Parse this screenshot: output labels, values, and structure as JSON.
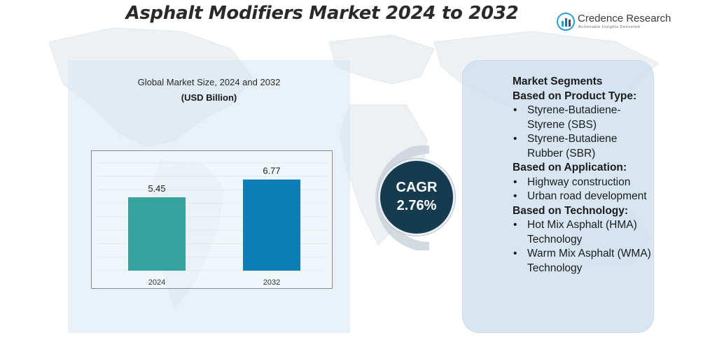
{
  "title": "Asphalt Modifiers Market 2024 to 2032",
  "logo": {
    "name": "Credence Research",
    "tagline": "Actionable Insights Delivered",
    "colors": {
      "bar1": "#2d9bd6",
      "bar2": "#1a6fa3",
      "bar3": "#4a4a4a"
    }
  },
  "chart_data": {
    "type": "bar",
    "title": "Global Market Size, 2024 and 2032",
    "unit": "(USD Billion)",
    "categories": [
      "2024",
      "2032"
    ],
    "values": [
      5.45,
      6.77
    ],
    "value_labels": [
      "5.45",
      "6.77"
    ],
    "colors": [
      "#35a39d",
      "#0b7eb3"
    ],
    "ylim": [
      0,
      8
    ],
    "grid": true,
    "xlabel": "",
    "ylabel": ""
  },
  "cagr": {
    "label": "CAGR",
    "value": "2.76%",
    "color": "#163a4e"
  },
  "segments": {
    "title": "Market Segments",
    "groups": [
      {
        "heading": "Based on Product Type:",
        "items": [
          "Styrene-Butadiene-Styrene (SBS)",
          "Styrene-Butadiene Rubber (SBR)"
        ]
      },
      {
        "heading": "Based on Application:",
        "items": [
          "Highway construction",
          "Urban road development"
        ]
      },
      {
        "heading": "Based on Technology:",
        "items": [
          "Hot Mix Asphalt (HMA) Technology",
          "Warm Mix Asphalt (WMA) Technology"
        ]
      }
    ]
  }
}
